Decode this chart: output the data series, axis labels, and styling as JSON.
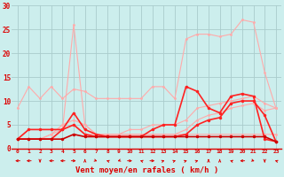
{
  "x": [
    0,
    1,
    2,
    3,
    4,
    5,
    6,
    7,
    8,
    9,
    10,
    11,
    12,
    13,
    14,
    15,
    16,
    17,
    18,
    19,
    20,
    21,
    22,
    23
  ],
  "series": [
    {
      "color": "#ffaaaa",
      "linewidth": 0.8,
      "markersize": 2.0,
      "values": [
        8.5,
        13,
        10.5,
        13,
        10.5,
        12.5,
        12,
        10.5,
        10.5,
        10.5,
        10.5,
        10.5,
        13,
        13,
        10.5,
        23,
        24,
        24,
        23.5,
        24,
        27,
        26.5,
        16,
        8.5
      ]
    },
    {
      "color": "#ffaaaa",
      "linewidth": 0.8,
      "markersize": 2.0,
      "values": [
        2,
        4,
        4,
        4,
        4,
        26,
        5,
        3,
        3,
        3,
        3,
        3,
        3,
        3,
        3,
        3,
        3,
        3,
        3,
        3,
        3,
        3,
        3,
        3
      ]
    },
    {
      "color": "#ffaaaa",
      "linewidth": 0.8,
      "markersize": 2.0,
      "values": [
        2,
        2,
        2,
        3,
        5,
        6,
        5,
        3,
        3,
        3,
        4,
        4,
        5,
        5,
        5,
        6,
        8.5,
        9,
        9.5,
        10,
        10.5,
        11,
        9.5,
        8.5
      ]
    },
    {
      "color": "#ffaaaa",
      "linewidth": 0.8,
      "markersize": 2.0,
      "values": [
        2,
        2,
        2,
        3,
        4,
        5,
        3,
        3,
        3,
        3,
        3,
        3,
        3,
        3,
        3,
        4,
        6,
        7,
        7.5,
        8.5,
        9,
        9.5,
        8,
        8.5
      ]
    },
    {
      "color": "#ff2222",
      "linewidth": 1.2,
      "markersize": 2.5,
      "values": [
        2,
        4,
        4,
        4,
        4,
        7.5,
        4,
        3,
        2.5,
        2.5,
        2.5,
        2.5,
        4,
        5,
        5,
        13,
        12,
        8.5,
        7.5,
        11,
        11.5,
        11,
        2,
        1.5
      ]
    },
    {
      "color": "#ff2222",
      "linewidth": 1.2,
      "markersize": 2.5,
      "values": [
        2,
        2,
        2,
        2,
        4,
        5,
        3,
        2.5,
        2.5,
        2.5,
        2.5,
        2.5,
        2.5,
        2.5,
        2.5,
        3,
        5,
        6,
        6.5,
        9.5,
        10,
        10,
        7,
        1.5
      ]
    },
    {
      "color": "#cc0000",
      "linewidth": 1.2,
      "markersize": 2.5,
      "values": [
        2,
        2,
        2,
        2,
        2,
        3,
        2.5,
        2.5,
        2.5,
        2.5,
        2.5,
        2.5,
        2.5,
        2.5,
        2.5,
        2.5,
        2.5,
        2.5,
        2.5,
        2.5,
        2.5,
        2.5,
        2.5,
        1.5
      ]
    }
  ],
  "wind_dirs": [
    270,
    270,
    180,
    270,
    270,
    90,
    0,
    135,
    315,
    225,
    90,
    315,
    90,
    45,
    45,
    45,
    45,
    0,
    0,
    315,
    270,
    135,
    180,
    315
  ],
  "xlabel": "Vent moyen/en rafales ( km/h )",
  "ylim": [
    0,
    30
  ],
  "xlim": [
    -0.5,
    23.5
  ],
  "yticks": [
    0,
    5,
    10,
    15,
    20,
    25,
    30
  ],
  "xticks": [
    0,
    1,
    2,
    3,
    4,
    5,
    6,
    7,
    8,
    9,
    10,
    11,
    12,
    13,
    14,
    15,
    16,
    17,
    18,
    19,
    20,
    21,
    22,
    23
  ],
  "bg_color": "#cceeed",
  "grid_color": "#aacccc",
  "text_color": "#dd0000",
  "arrow_color": "#dd0000",
  "figsize": [
    3.2,
    2.0
  ],
  "dpi": 100
}
